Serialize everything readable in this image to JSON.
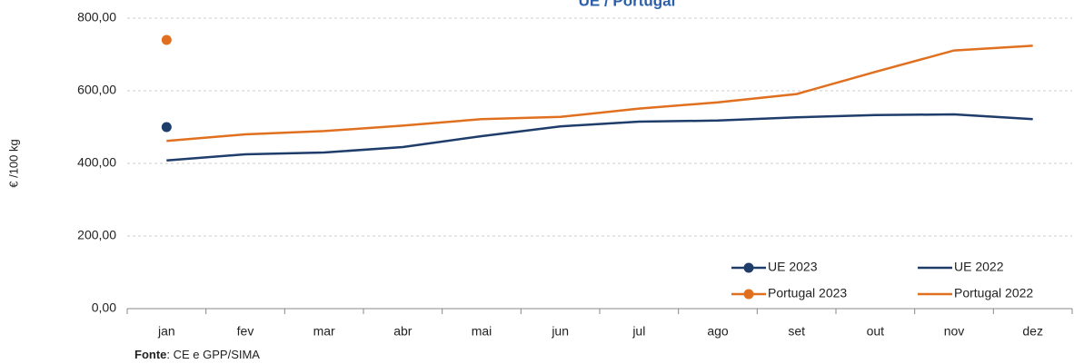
{
  "chart_data": {
    "type": "line",
    "title": "UE / Portugal",
    "y_label": "€ /100 kg",
    "categories": [
      "jan",
      "fev",
      "mar",
      "abr",
      "mai",
      "jun",
      "jul",
      "ago",
      "set",
      "out",
      "nov",
      "dez"
    ],
    "series": [
      {
        "name": "UE 2023",
        "color": "#1f3d6b",
        "marker": true,
        "values": [
          500,
          null,
          null,
          null,
          null,
          null,
          null,
          null,
          null,
          null,
          null,
          null
        ]
      },
      {
        "name": "UE 2022",
        "color": "#1f3d6b",
        "marker": false,
        "values": [
          408,
          425,
          430,
          445,
          475,
          502,
          515,
          518,
          527,
          533,
          535,
          522
        ]
      },
      {
        "name": "Portugal 2023",
        "color": "#e07020",
        "marker": true,
        "values": [
          740,
          null,
          null,
          null,
          null,
          null,
          null,
          null,
          null,
          null,
          null,
          null
        ]
      },
      {
        "name": "Portugal 2022",
        "color": "#e07020",
        "marker": false,
        "values": [
          462,
          480,
          489,
          504,
          522,
          528,
          551,
          568,
          591,
          652,
          711,
          724
        ]
      }
    ],
    "ylim": [
      0,
      800
    ],
    "yticks": [
      {
        "value": 0,
        "label": "0,00"
      },
      {
        "value": 200,
        "label": "200,00"
      },
      {
        "value": 400,
        "label": "400,00"
      },
      {
        "value": 600,
        "label": "600,00"
      },
      {
        "value": 800,
        "label": "800,00"
      }
    ],
    "grid": true,
    "legend": "lower right",
    "source_label": "Fonte",
    "source_text": ": CE e GPP/SIMA"
  }
}
